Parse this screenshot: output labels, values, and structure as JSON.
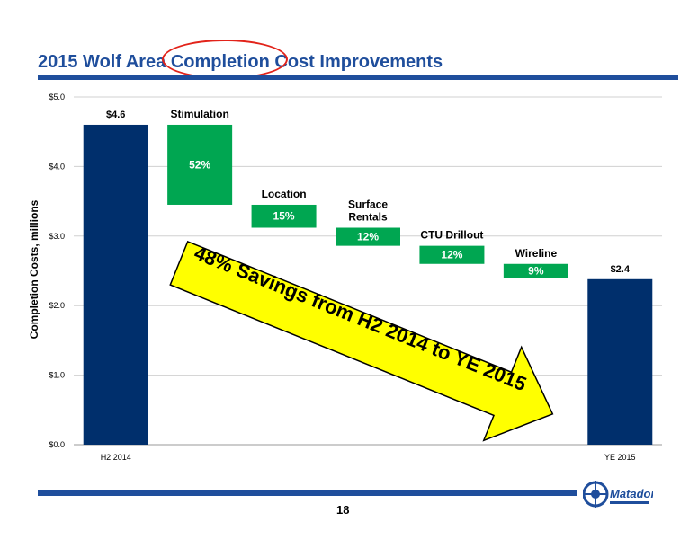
{
  "title": "2015 Wolf Area Completion Cost Improvements",
  "page_number": "18",
  "logo_text": "Matador",
  "arrow_text": "48% Savings from H2 2014 to YE 2015",
  "colors": {
    "navy": "#002f6c",
    "green": "#00a651",
    "title_blue": "#1f4e9c",
    "arrow_yellow": "#ffff00",
    "highlight_red": "#e2231a"
  },
  "chart_data": {
    "type": "waterfall",
    "ylabel": "Completion Costs, millions",
    "ylim": [
      0,
      5
    ],
    "yticks": [
      "$0.0",
      "$1.0",
      "$2.0",
      "$3.0",
      "$4.0",
      "$5.0"
    ],
    "grid": true,
    "bars": [
      {
        "kind": "total",
        "category": "H2 2014",
        "start": 0,
        "end": 4.6,
        "value_label": "$4.6"
      },
      {
        "kind": "step",
        "category": "",
        "name": "Stimulation",
        "start": 4.6,
        "end": 3.45,
        "pct": "52%"
      },
      {
        "kind": "step",
        "category": "",
        "name": "Location",
        "start": 3.45,
        "end": 3.12,
        "pct": "15%"
      },
      {
        "kind": "step",
        "category": "",
        "name": "Surface\nRentals",
        "start": 3.12,
        "end": 2.86,
        "pct": "12%"
      },
      {
        "kind": "step",
        "category": "",
        "name": "CTU Drillout",
        "start": 2.86,
        "end": 2.6,
        "pct": "12%"
      },
      {
        "kind": "step",
        "category": "",
        "name": "Wireline",
        "start": 2.6,
        "end": 2.4,
        "pct": "9%"
      },
      {
        "kind": "total",
        "category": "YE 2015",
        "start": 0,
        "end": 2.38,
        "value_label": "$2.4"
      }
    ]
  }
}
